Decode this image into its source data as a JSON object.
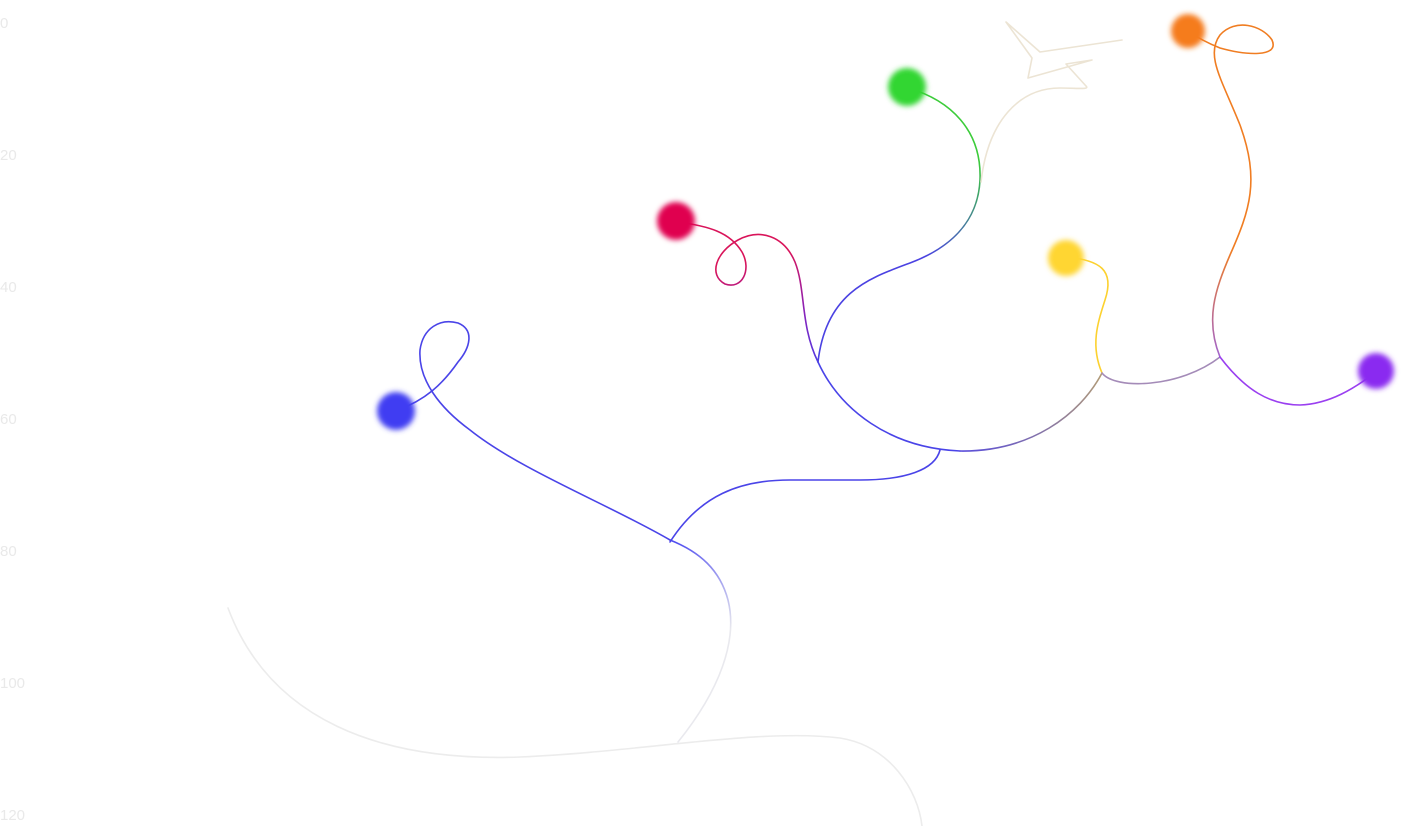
{
  "axis": {
    "tick_labels": [
      "0",
      "20",
      "40",
      "60",
      "80",
      "100",
      "120"
    ]
  },
  "colors": {
    "background": "#ffffff",
    "tick_text": "#e9e9e9",
    "blue": "#3f3cf2",
    "crimson": "#e0044f",
    "green": "#33d633",
    "yellow": "#ffd633",
    "orange": "#f57c1f",
    "violet": "#8a2cf0",
    "faint_trunk": "#ececec",
    "faint_beige": "#efe6d6",
    "blue_violet_mix": "#8e7bc2",
    "yellow_violet_mix": "#a48bb8"
  },
  "nodes": [
    {
      "name": "blue-node",
      "color": "blue"
    },
    {
      "name": "crimson-node",
      "color": "crimson"
    },
    {
      "name": "green-node",
      "color": "green"
    },
    {
      "name": "yellow-node",
      "color": "yellow"
    },
    {
      "name": "orange-node",
      "color": "orange"
    },
    {
      "name": "violet-node",
      "color": "violet"
    }
  ]
}
